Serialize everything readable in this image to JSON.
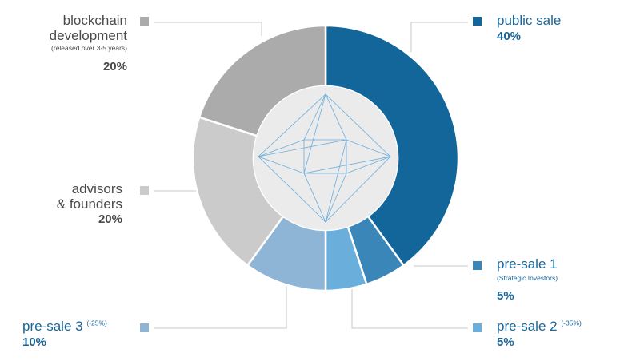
{
  "chart_data": {
    "type": "pie",
    "donut": true,
    "slices": [
      {
        "label": "public sale",
        "value": 40,
        "color": "#12669a"
      },
      {
        "label": "pre-sale 1",
        "note": "(Strategic Investors)",
        "value": 5,
        "color": "#3b86b8"
      },
      {
        "label": "pre-sale 2",
        "bonus": "(-35%)",
        "value": 5,
        "color": "#6aaedc"
      },
      {
        "label": "pre-sale 3",
        "bonus": "(-25%)",
        "value": 10,
        "color": "#8fb5d6"
      },
      {
        "label": "advisors & founders",
        "value": 20,
        "color": "#cbcbcb"
      },
      {
        "label": "blockchain development",
        "note": "(released over 3-5 years)",
        "value": 20,
        "color": "#ababab"
      }
    ]
  },
  "labels": {
    "public_sale": {
      "name": "public sale",
      "pct": "40%"
    },
    "pre_sale_1": {
      "name": "pre-sale 1",
      "note": "(Strategic Investors)",
      "pct": "5%"
    },
    "pre_sale_2": {
      "name": "pre-sale 2",
      "bonus": "(-35%)",
      "pct": "5%"
    },
    "pre_sale_3": {
      "name": "pre-sale 3",
      "bonus": "(-25%)",
      "pct": "10%"
    },
    "advisors": {
      "name_line1": "advisors",
      "name_line2": "& founders",
      "pct": "20%"
    },
    "blockchain": {
      "name_line1": "blockchain",
      "name_line2": "development",
      "note": "(released over 3-5 years)",
      "pct": "20%"
    }
  },
  "center_icon": "wireframe-octahedron-icon"
}
